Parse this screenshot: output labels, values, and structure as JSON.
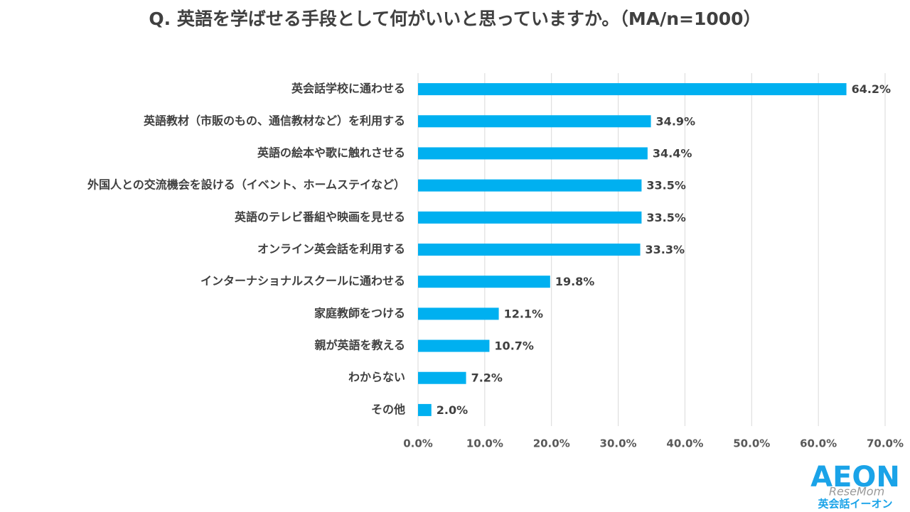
{
  "chart_data": {
    "type": "hbar",
    "title": "Q. 英語を学ばせる手段として何がいいと思っていますか。（MA/n=1000）",
    "categories": [
      "英会話学校に通わせる",
      "英語教材（市販のもの、通信教材など）を利用する",
      "英語の絵本や歌に触れさせる",
      "外国人との交流機会を設ける（イベント、ホームステイなど）",
      "英語のテレビ番組や映画を見せる",
      "オンライン英会話を利用する",
      "インターナショナルスクールに通わせる",
      "家庭教師をつける",
      "親が英語を教える",
      "わからない",
      "その他"
    ],
    "values": [
      64.2,
      34.9,
      34.4,
      33.5,
      33.5,
      33.3,
      19.8,
      12.1,
      10.7,
      7.2,
      2.0
    ],
    "value_labels": [
      "64.2%",
      "34.9%",
      "34.4%",
      "33.5%",
      "33.5%",
      "33.3%",
      "19.8%",
      "12.1%",
      "10.7%",
      "7.2%",
      "2.0%"
    ],
    "color": "#00b0f0",
    "xlim": [
      0,
      70
    ],
    "xticks": [
      {
        "value": 0,
        "label": "0.0%"
      },
      {
        "value": 10,
        "label": "10.0%"
      },
      {
        "value": 20,
        "label": "20.0%"
      },
      {
        "value": 30,
        "label": "30.0%"
      },
      {
        "value": 40,
        "label": "40.0%"
      },
      {
        "value": 50,
        "label": "50.0%"
      },
      {
        "value": 60,
        "label": "60.0%"
      },
      {
        "value": 70,
        "label": "70.0%"
      }
    ],
    "grid": true
  },
  "logo": {
    "brand": "AEON",
    "subtitle": "英会話イーオン"
  },
  "watermark": "ReseMom"
}
